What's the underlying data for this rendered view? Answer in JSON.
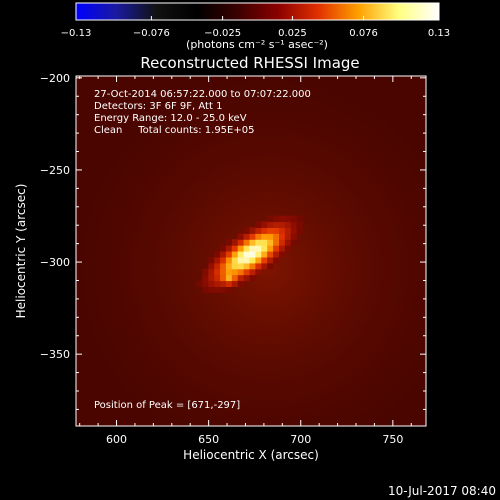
{
  "chart_data": {
    "type": "heatmap",
    "title": "Reconstructed RHESSI Image",
    "xlabel": "Heliocentric X (arcsec)",
    "ylabel": "Heliocentric Y (arcsec)",
    "xlim": [
      578,
      768
    ],
    "ylim": [
      -389,
      -199
    ],
    "x_ticks": [
      600,
      650,
      700,
      750
    ],
    "x_tick_labels": [
      "600",
      "650",
      "700",
      "750"
    ],
    "y_ticks": [
      -200,
      -250,
      -300,
      -350
    ],
    "y_tick_labels": [
      "−200",
      "−250",
      "−300",
      "−350"
    ],
    "colorbar": {
      "range": [
        -0.13,
        0.13
      ],
      "ticks": [
        -0.13,
        -0.076,
        -0.025,
        0.025,
        0.076,
        0.13
      ],
      "tick_labels": [
        "−0.13",
        "−0.076",
        "−0.025",
        "0.025",
        "0.076",
        "0.13"
      ],
      "units": "(photons cm⁻² s⁻¹ asec⁻²)",
      "colormap": [
        "#0000ff",
        "#1a1aa0",
        "#111111",
        "#000000",
        "#3a0000",
        "#8a0000",
        "#e03000",
        "#ffa000",
        "#ffff80",
        "#ffffff"
      ]
    },
    "annotations": [
      "27-Oct-2014 06:57:22.000 to 07:07:22.000",
      "Detectors: 3F 6F 9F, Att 1",
      "Energy Range: 12.0 - 25.0 keV",
      "Clean     Total counts: 1.95E+05"
    ],
    "peak_label": "Position of Peak = [671,-297]",
    "peak": {
      "x": 671,
      "y": -297,
      "value": 0.13
    },
    "source": {
      "angle_deg": 35,
      "sigma_major": 16,
      "sigma_minor": 6
    },
    "background_level": 0.012
  },
  "footer": {
    "date": "10-Jul-2017 08:40"
  }
}
